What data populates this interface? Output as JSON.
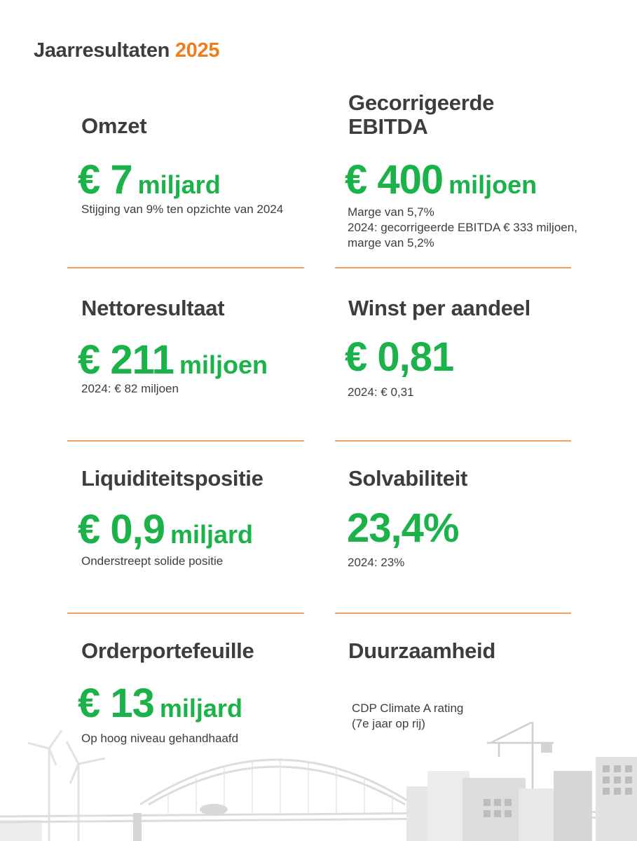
{
  "title": {
    "main": "Jaarresultaten",
    "year": "2025"
  },
  "kpis": [
    {
      "label": "Omzet",
      "value": "€ 7",
      "unit": "miljard",
      "notes": [
        "Stijging van 9% ten opzichte van 2024"
      ]
    },
    {
      "label_line1": "Gecorrigeerde",
      "label_line2": "EBITDA",
      "value": "€ 400",
      "unit": "miljoen",
      "notes": [
        "Marge van 5,7%",
        "2024: gecorrigeerde EBITDA € 333 miljoen,",
        "marge van 5,2%"
      ]
    },
    {
      "label": "Nettoresultaat",
      "value": "€ 211",
      "unit": "miljoen",
      "notes": [
        "2024: € 82 miljoen"
      ]
    },
    {
      "label": "Winst per aandeel",
      "value": "€ 0,81",
      "unit": "",
      "notes": [
        "2024: € 0,31"
      ]
    },
    {
      "label": "Liquiditeitspositie",
      "value": "€ 0,9",
      "unit": "miljard",
      "notes": [
        "Onderstreept solide positie"
      ]
    },
    {
      "label": "Solvabiliteit",
      "value": "23,4%",
      "unit": "",
      "notes": [
        "2024: 23%"
      ]
    },
    {
      "label": "Orderportefeuille",
      "value": "€ 13",
      "unit": "miljard",
      "notes": [
        "Op hoog niveau gehandhaafd"
      ]
    },
    {
      "label": "Duurzaamheid",
      "notes": [
        "CDP Climate A rating",
        "(7e jaar op rij)"
      ]
    }
  ],
  "colors": {
    "accent": "#f07d19",
    "value": "#1bb24a",
    "text": "#3a3f3d",
    "rule": "#f5a15c"
  }
}
